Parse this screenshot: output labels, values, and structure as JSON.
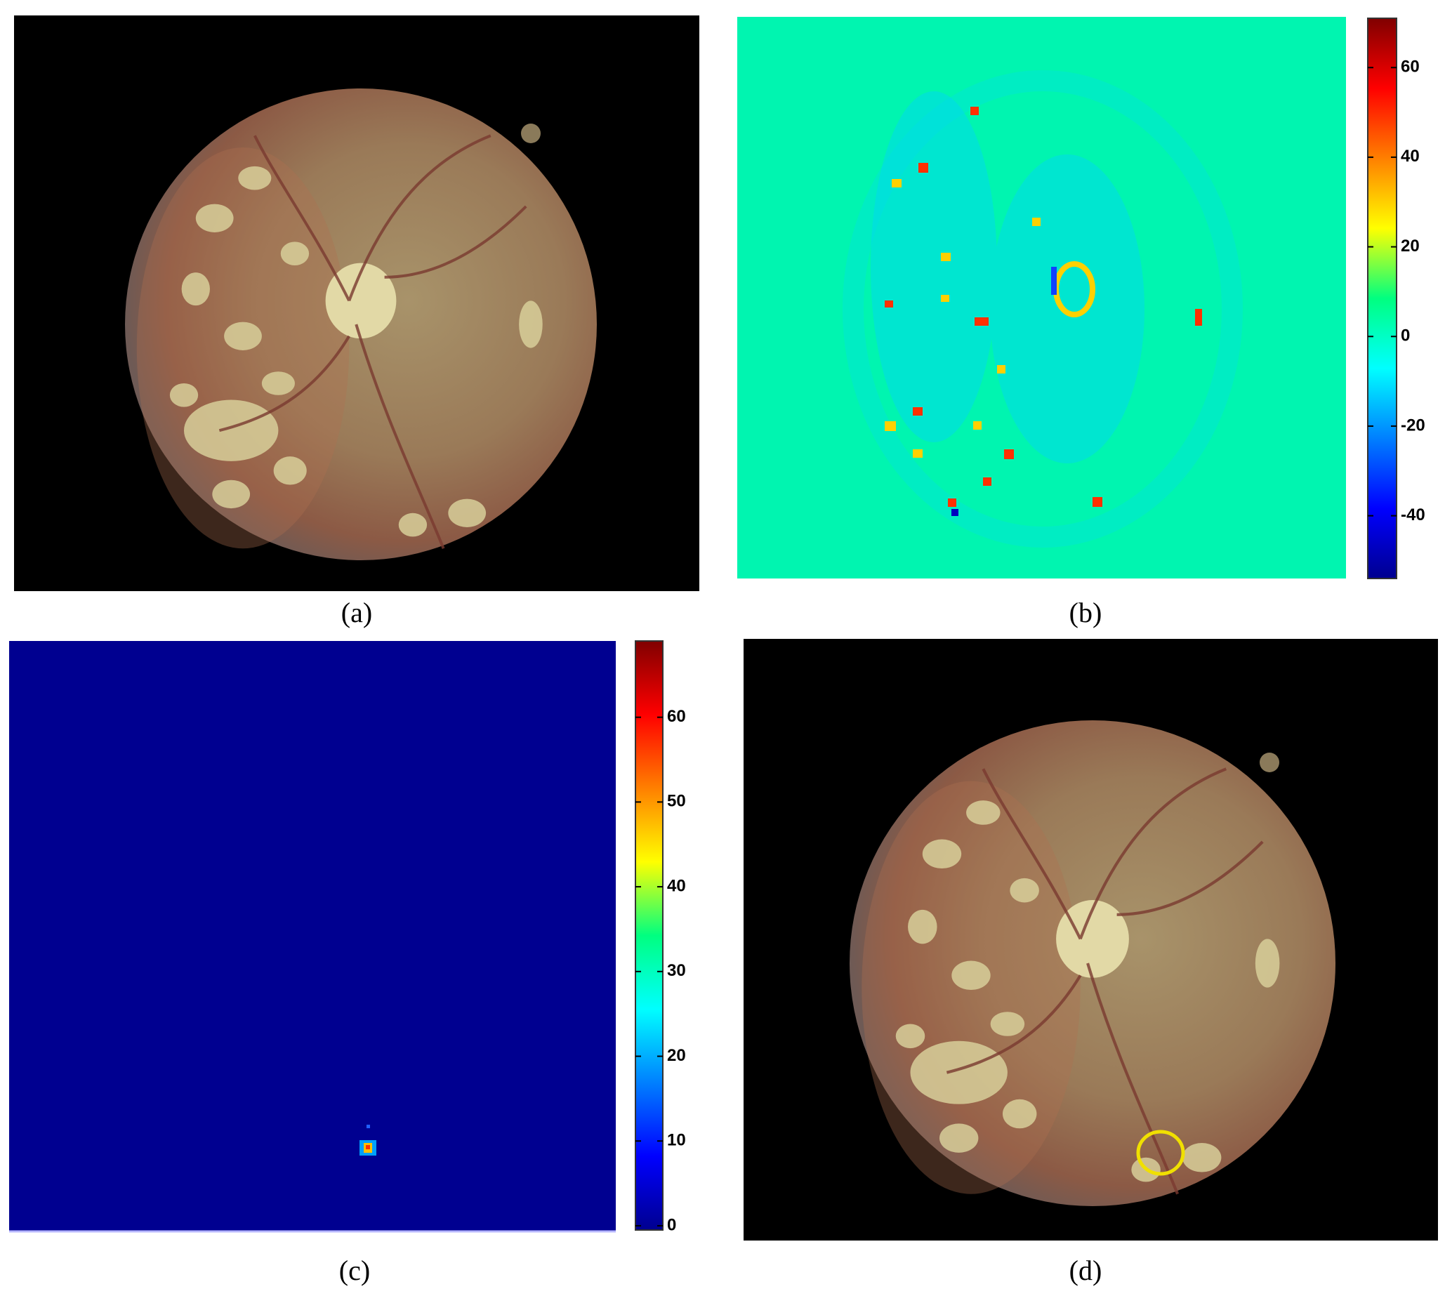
{
  "panels": [
    {
      "label": "(a)"
    },
    {
      "label": "(b)",
      "colorbar": {
        "lim": [
          -54,
          71
        ],
        "ticks": [
          60,
          40,
          20,
          0,
          -20,
          -40
        ]
      }
    },
    {
      "label": "(c)",
      "colorbar": {
        "lim": [
          -0.5,
          69
        ],
        "ticks": [
          60,
          50,
          40,
          30,
          20,
          10,
          0
        ]
      }
    },
    {
      "label": "(d)"
    }
  ]
}
